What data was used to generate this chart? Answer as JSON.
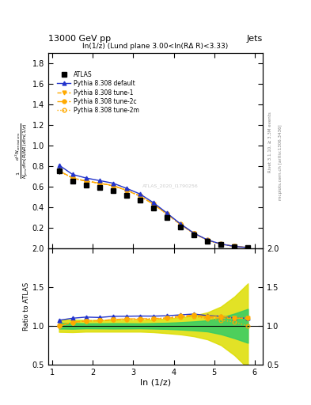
{
  "title_left": "13000 GeV pp",
  "title_right": "Jets",
  "subplot_title": "ln(1/z) (Lund plane 3.00<ln(RΔ R)<3.33)",
  "xlabel": "ln (1/z)",
  "ylabel_line1": "d² N",
  "ylabel_ratio": "Ratio to ATLAS",
  "right_label_top": "Rivet 3.1.10, ≥ 3.3M events",
  "right_label_bot": "mcplots.cern.ch [arXiv:1306.3436]",
  "watermark": "ATLAS_2020_I1790256",
  "x_data": [
    1.167,
    1.5,
    1.833,
    2.167,
    2.5,
    2.833,
    3.167,
    3.5,
    3.833,
    4.167,
    4.5,
    4.833,
    5.167,
    5.5,
    5.833
  ],
  "atlas_y": [
    0.755,
    0.655,
    0.615,
    0.595,
    0.565,
    0.52,
    0.47,
    0.395,
    0.305,
    0.21,
    0.13,
    0.075,
    0.04,
    0.02,
    0.01
  ],
  "atlas_yerr": [
    0.03,
    0.025,
    0.02,
    0.02,
    0.02,
    0.018,
    0.016,
    0.015,
    0.012,
    0.01,
    0.007,
    0.005,
    0.004,
    0.003,
    0.002
  ],
  "pythia_default_y": [
    0.81,
    0.72,
    0.685,
    0.66,
    0.635,
    0.585,
    0.53,
    0.445,
    0.345,
    0.24,
    0.15,
    0.085,
    0.045,
    0.022,
    0.011
  ],
  "pythia_tune1_y": [
    0.755,
    0.685,
    0.655,
    0.635,
    0.61,
    0.565,
    0.51,
    0.43,
    0.335,
    0.235,
    0.147,
    0.083,
    0.044,
    0.022,
    0.011
  ],
  "pythia_tune2c_y": [
    0.755,
    0.685,
    0.655,
    0.635,
    0.612,
    0.567,
    0.513,
    0.432,
    0.337,
    0.237,
    0.148,
    0.084,
    0.045,
    0.022,
    0.011
  ],
  "pythia_tune2m_y": [
    0.755,
    0.685,
    0.655,
    0.635,
    0.61,
    0.565,
    0.51,
    0.43,
    0.335,
    0.234,
    0.146,
    0.082,
    0.043,
    0.021,
    0.01
  ],
  "ratio_band_green_half": [
    0.035,
    0.038,
    0.032,
    0.033,
    0.035,
    0.034,
    0.032,
    0.036,
    0.04,
    0.048,
    0.058,
    0.072,
    0.108,
    0.16,
    0.22
  ],
  "ratio_band_yellow_half": [
    0.078,
    0.082,
    0.075,
    0.075,
    0.075,
    0.075,
    0.075,
    0.082,
    0.095,
    0.11,
    0.135,
    0.175,
    0.25,
    0.38,
    0.55
  ],
  "xlim": [
    0.9,
    6.2
  ],
  "ylim_main": [
    0.0,
    1.9
  ],
  "ylim_ratio": [
    0.5,
    2.0
  ],
  "yticks_main": [
    0.2,
    0.4,
    0.6,
    0.8,
    1.0,
    1.2,
    1.4,
    1.6,
    1.8
  ],
  "yticks_ratio": [
    0.5,
    1.0,
    1.5,
    2.0
  ],
  "xticks": [
    1,
    2,
    3,
    4,
    5,
    6
  ],
  "color_atlas": "#000000",
  "color_default": "#2233cc",
  "color_tune1": "#ffaa00",
  "color_tune2c": "#ffaa00",
  "color_tune2m": "#ffaa00",
  "color_green_band": "#33cc66",
  "color_yellow_band": "#dddd00",
  "legend_entries": [
    "ATLAS",
    "Pythia 8.308 default",
    "Pythia 8.308 tune-1",
    "Pythia 8.308 tune-2c",
    "Pythia 8.308 tune-2m"
  ]
}
